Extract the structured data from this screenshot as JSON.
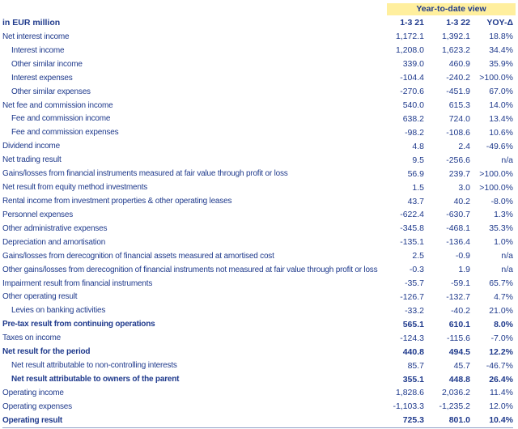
{
  "sheet": {
    "view_header": "Year-to-date view",
    "unit_label": "in EUR million",
    "columns": [
      "1-3 21",
      "1-3 22",
      "YOY-Δ"
    ],
    "rows": [
      {
        "label": "Net interest income",
        "indent": false,
        "bold": false,
        "values": [
          "1,172.1",
          "1,392.1",
          "18.8%"
        ]
      },
      {
        "label": "Interest income",
        "indent": true,
        "bold": false,
        "values": [
          "1,208.0",
          "1,623.2",
          "34.4%"
        ]
      },
      {
        "label": "Other similar income",
        "indent": true,
        "bold": false,
        "values": [
          "339.0",
          "460.9",
          "35.9%"
        ]
      },
      {
        "label": "Interest expenses",
        "indent": true,
        "bold": false,
        "values": [
          "-104.4",
          "-240.2",
          ">100.0%"
        ]
      },
      {
        "label": "Other similar expenses",
        "indent": true,
        "bold": false,
        "values": [
          "-270.6",
          "-451.9",
          "67.0%"
        ]
      },
      {
        "label": "Net fee and commission income",
        "indent": false,
        "bold": false,
        "values": [
          "540.0",
          "615.3",
          "14.0%"
        ]
      },
      {
        "label": "Fee and commission income",
        "indent": true,
        "bold": false,
        "values": [
          "638.2",
          "724.0",
          "13.4%"
        ]
      },
      {
        "label": "Fee and commission expenses",
        "indent": true,
        "bold": false,
        "values": [
          "-98.2",
          "-108.6",
          "10.6%"
        ]
      },
      {
        "label": "Dividend income",
        "indent": false,
        "bold": false,
        "values": [
          "4.8",
          "2.4",
          "-49.6%"
        ]
      },
      {
        "label": "Net trading result",
        "indent": false,
        "bold": false,
        "values": [
          "9.5",
          "-256.6",
          "n/a"
        ]
      },
      {
        "label": "Gains/losses from financial instruments measured at fair value through profit or loss",
        "indent": false,
        "bold": false,
        "values": [
          "56.9",
          "239.7",
          ">100.0%"
        ]
      },
      {
        "label": "Net result from equity method investments",
        "indent": false,
        "bold": false,
        "values": [
          "1.5",
          "3.0",
          ">100.0%"
        ]
      },
      {
        "label": "Rental income from investment properties & other operating leases",
        "indent": false,
        "bold": false,
        "values": [
          "43.7",
          "40.2",
          "-8.0%"
        ]
      },
      {
        "label": "Personnel expenses",
        "indent": false,
        "bold": false,
        "values": [
          "-622.4",
          "-630.7",
          "1.3%"
        ]
      },
      {
        "label": "Other administrative expenses",
        "indent": false,
        "bold": false,
        "values": [
          "-345.8",
          "-468.1",
          "35.3%"
        ]
      },
      {
        "label": "Depreciation and amortisation",
        "indent": false,
        "bold": false,
        "values": [
          "-135.1",
          "-136.4",
          "1.0%"
        ]
      },
      {
        "label": "Gains/losses from derecognition of financial assets measured at amortised cost",
        "indent": false,
        "bold": false,
        "values": [
          "2.5",
          "-0.9",
          "n/a"
        ]
      },
      {
        "label": "Other gains/losses from derecognition of financial instruments not measured at fair value through profit or loss",
        "indent": false,
        "bold": false,
        "values": [
          "-0.3",
          "1.9",
          "n/a"
        ]
      },
      {
        "label": "Impairment result from financial instruments",
        "indent": false,
        "bold": false,
        "values": [
          "-35.7",
          "-59.1",
          "65.7%"
        ]
      },
      {
        "label": "Other operating result",
        "indent": false,
        "bold": false,
        "values": [
          "-126.7",
          "-132.7",
          "4.7%"
        ]
      },
      {
        "label": "Levies on banking activities",
        "indent": true,
        "bold": false,
        "values": [
          "-33.2",
          "-40.2",
          "21.0%"
        ]
      },
      {
        "label": "Pre-tax result from continuing operations",
        "indent": false,
        "bold": true,
        "values": [
          "565.1",
          "610.1",
          "8.0%"
        ]
      },
      {
        "label": "Taxes on income",
        "indent": false,
        "bold": false,
        "values": [
          "-124.3",
          "-115.6",
          "-7.0%"
        ]
      },
      {
        "label": "Net result for the period",
        "indent": false,
        "bold": true,
        "values": [
          "440.8",
          "494.5",
          "12.2%"
        ]
      },
      {
        "label": "Net result attributable to non-controlling interests",
        "indent": true,
        "bold": false,
        "values": [
          "85.7",
          "45.7",
          "-46.7%"
        ]
      },
      {
        "label": "Net result attributable to owners of the parent",
        "indent": true,
        "bold": true,
        "values": [
          "355.1",
          "448.8",
          "26.4%"
        ]
      },
      {
        "label": "Operating income",
        "indent": false,
        "bold": false,
        "values": [
          "1,828.6",
          "2,036.2",
          "11.4%"
        ]
      },
      {
        "label": "Operating expenses",
        "indent": false,
        "bold": false,
        "values": [
          "-1,103.3",
          "-1,235.2",
          "12.0%"
        ]
      },
      {
        "label": "Operating result",
        "indent": false,
        "bold": true,
        "values": [
          "725.3",
          "801.0",
          "10.4%"
        ]
      }
    ]
  },
  "colors": {
    "text_navy": "#1f3a8c",
    "highlight_yellow": "#ffef9e"
  }
}
